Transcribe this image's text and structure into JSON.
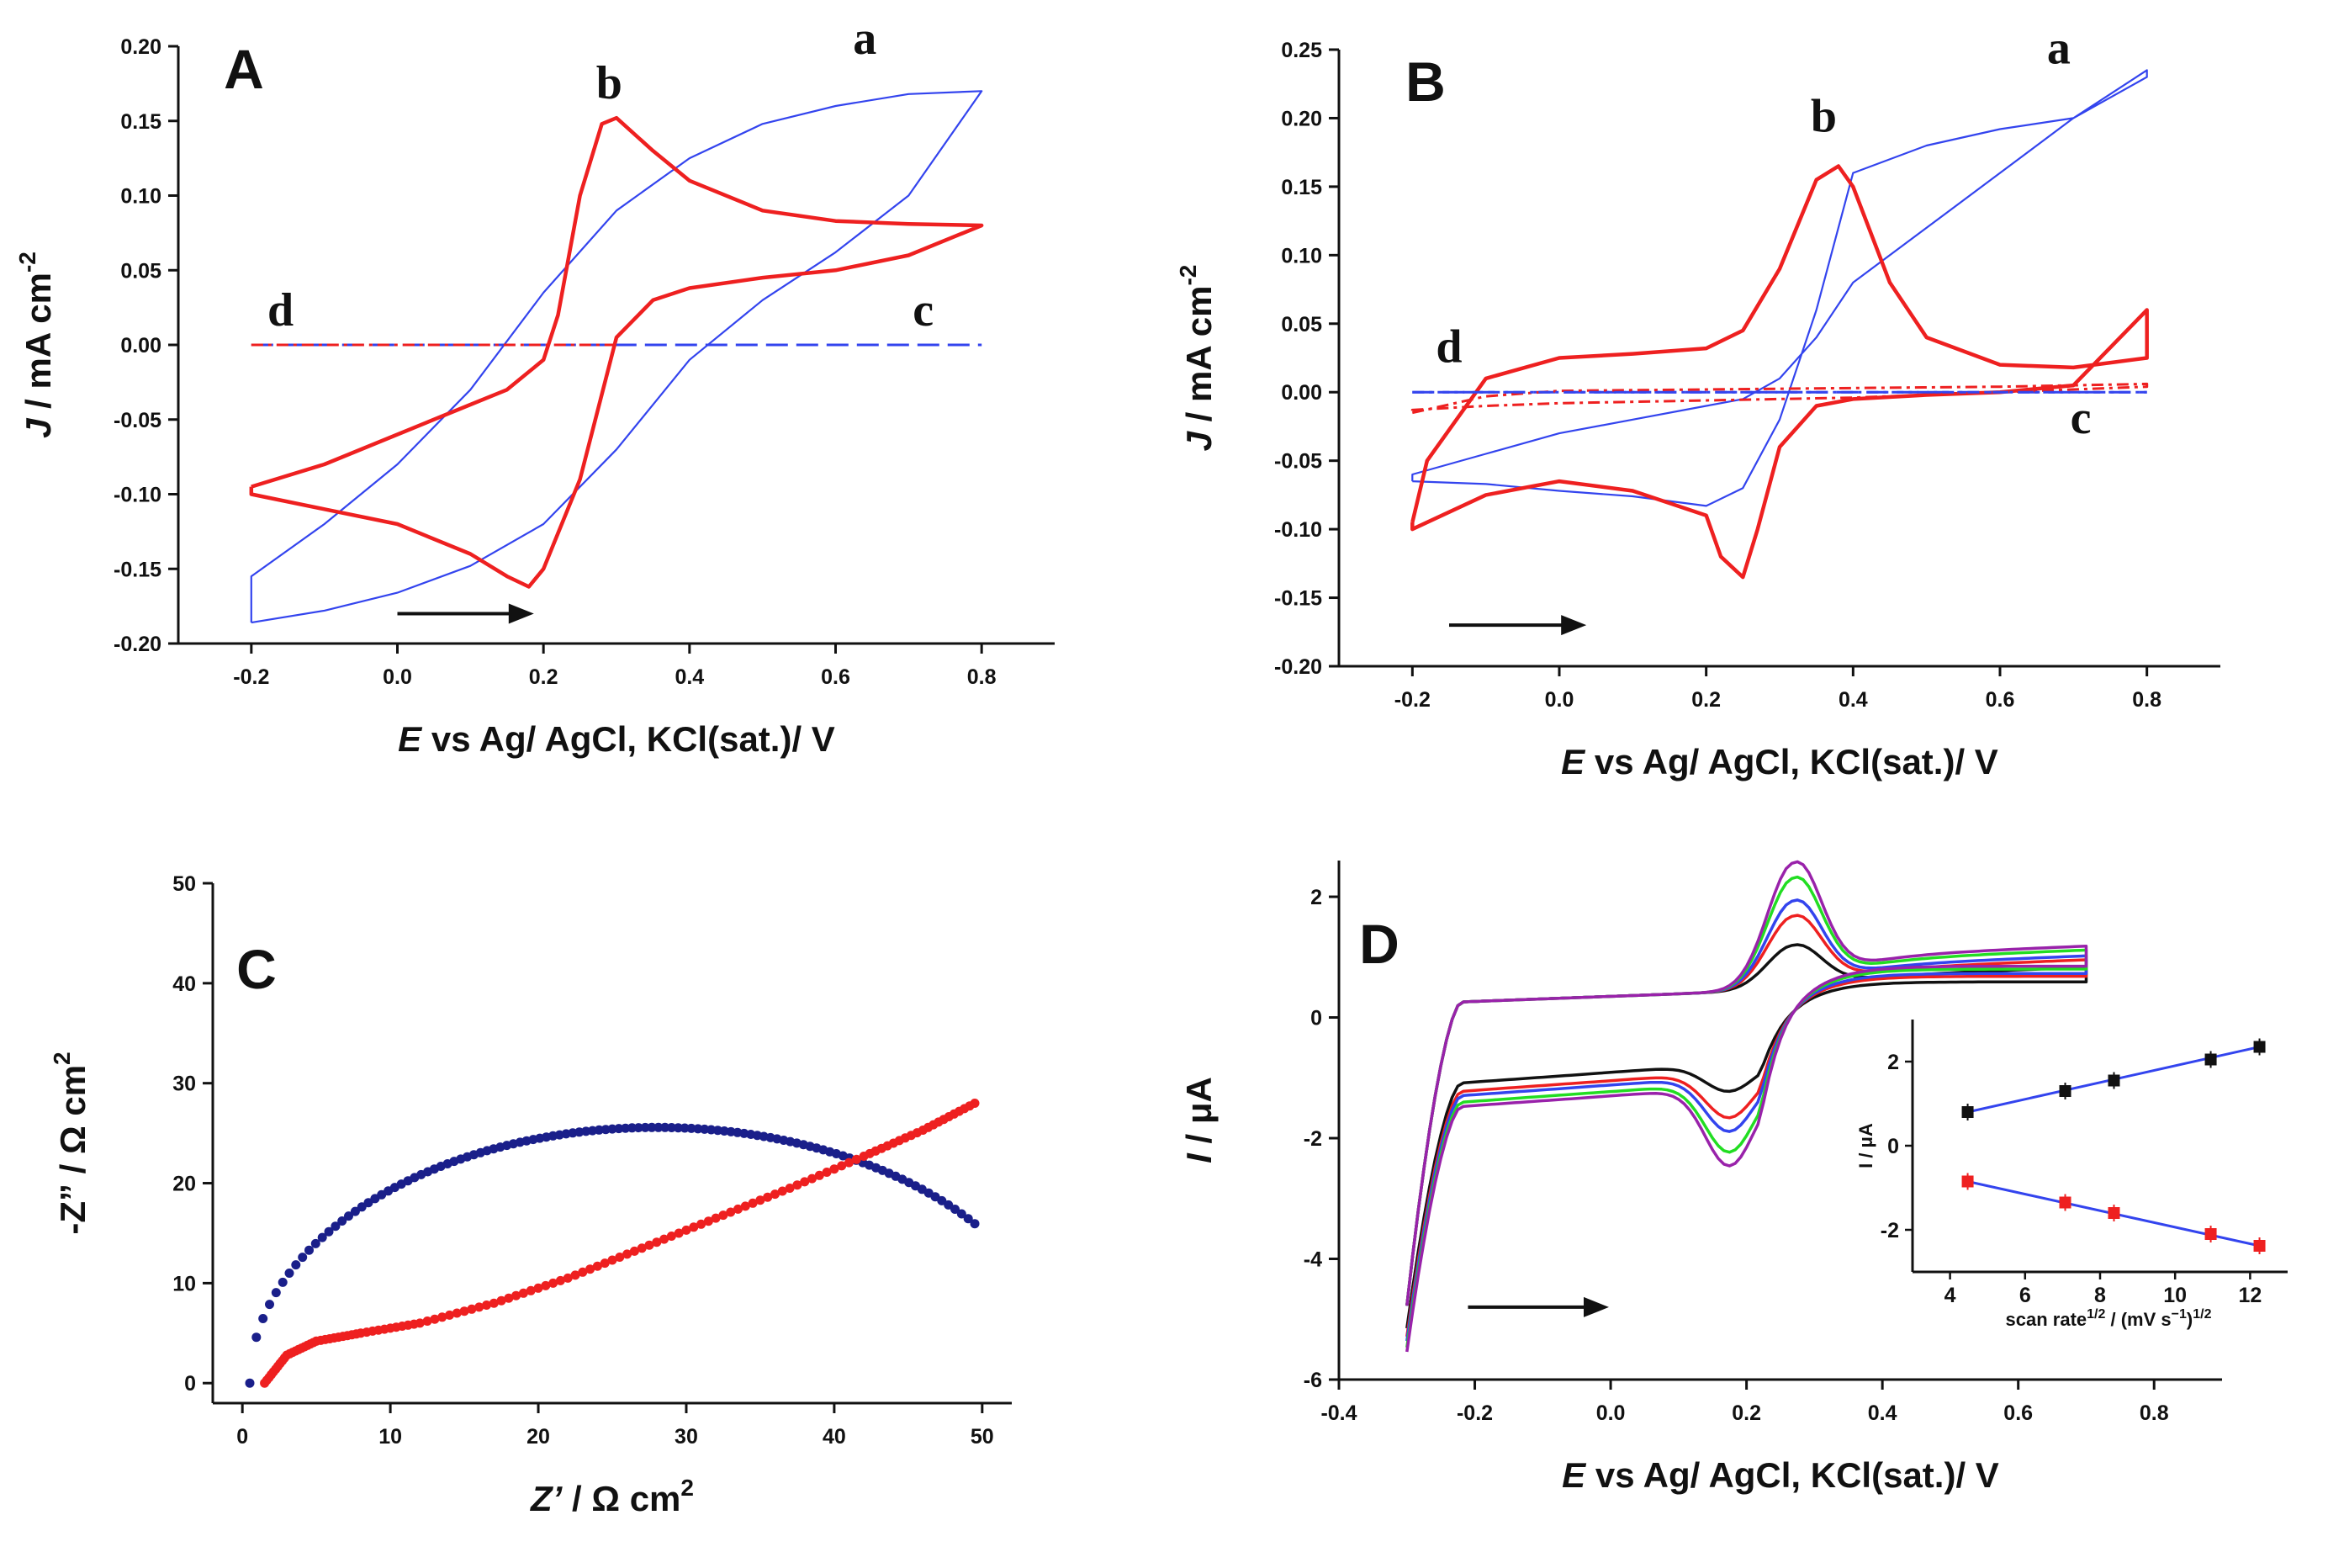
{
  "colors": {
    "red": "#ee2020",
    "blue": "#3344ee",
    "navy": "#1a1f8a",
    "green": "#22dd22",
    "purple": "#9922aa",
    "black": "#111111",
    "axis": "#111111"
  },
  "chart_data": [
    {
      "id": "A",
      "type": "line",
      "panel_label": "A",
      "xlabel_italic": "E",
      "xlabel_rest": " vs Ag/ AgCl, KCl(sat.)/ V",
      "ylabel_italic": "J",
      "ylabel_rest": " / mA cm",
      "ylabel_sup": "-2",
      "xlim": [
        -0.3,
        0.9
      ],
      "ylim": [
        -0.2,
        0.2
      ],
      "xticks": [
        -0.2,
        0.0,
        0.2,
        0.4,
        0.6,
        0.8
      ],
      "xtick_labels": [
        "-0.2",
        "0.0",
        "0.2",
        "0.4",
        "0.6",
        "0.8"
      ],
      "yticks": [
        -0.2,
        -0.15,
        -0.1,
        -0.05,
        0.0,
        0.05,
        0.1,
        0.15,
        0.2
      ],
      "ytick_labels": [
        "-0.20",
        "-0.15",
        "-0.10",
        "-0.05",
        "0.00",
        "0.05",
        "0.10",
        "0.15",
        "0.20"
      ],
      "curve_labels": [
        {
          "text": "a",
          "x": 0.64,
          "y": 0.195
        },
        {
          "text": "b",
          "x": 0.29,
          "y": 0.165
        },
        {
          "text": "c",
          "x": 0.72,
          "y": 0.013
        },
        {
          "text": "d",
          "x": -0.16,
          "y": 0.013
        }
      ],
      "arrow": {
        "x1": 0.0,
        "x2": 0.18,
        "y": -0.18
      },
      "series": [
        {
          "name": "a",
          "style": "thin-blue",
          "x": [
            -0.2,
            -0.1,
            0.0,
            0.1,
            0.2,
            0.3,
            0.4,
            0.5,
            0.6,
            0.7,
            0.8,
            0.8,
            0.7,
            0.6,
            0.5,
            0.4,
            0.3,
            0.2,
            0.1,
            0.0,
            -0.1,
            -0.2,
            -0.2
          ],
          "y": [
            -0.186,
            -0.178,
            -0.166,
            -0.148,
            -0.12,
            -0.07,
            -0.01,
            0.03,
            0.062,
            0.1,
            0.17,
            0.17,
            0.168,
            0.16,
            0.148,
            0.125,
            0.09,
            0.035,
            -0.03,
            -0.08,
            -0.12,
            -0.155,
            -0.186
          ]
        },
        {
          "name": "b",
          "style": "thick-red",
          "x": [
            -0.2,
            -0.1,
            0.0,
            0.1,
            0.15,
            0.2,
            0.22,
            0.25,
            0.28,
            0.3,
            0.35,
            0.4,
            0.5,
            0.6,
            0.7,
            0.8,
            0.8,
            0.7,
            0.6,
            0.5,
            0.4,
            0.35,
            0.3,
            0.25,
            0.2,
            0.18,
            0.15,
            0.1,
            0.0,
            -0.1,
            -0.2,
            -0.2
          ],
          "y": [
            -0.095,
            -0.08,
            -0.06,
            -0.04,
            -0.03,
            -0.01,
            0.02,
            0.1,
            0.148,
            0.152,
            0.13,
            0.11,
            0.09,
            0.083,
            0.081,
            0.08,
            0.08,
            0.06,
            0.05,
            0.045,
            0.038,
            0.03,
            0.005,
            -0.09,
            -0.15,
            -0.162,
            -0.155,
            -0.14,
            -0.12,
            -0.11,
            -0.1,
            -0.095
          ]
        },
        {
          "name": "c",
          "style": "dash-blue",
          "x": [
            -0.2,
            0.8
          ],
          "y": [
            0.0,
            0.0
          ]
        },
        {
          "name": "d",
          "style": "dashdot-red",
          "x": [
            -0.2,
            0.3
          ],
          "y": [
            0.0,
            0.0
          ]
        }
      ]
    },
    {
      "id": "B",
      "type": "line",
      "panel_label": "B",
      "xlabel_italic": "E",
      "xlabel_rest": " vs Ag/ AgCl, KCl(sat.)/ V",
      "ylabel_italic": "J",
      "ylabel_rest": " / mA cm",
      "ylabel_sup": "-2",
      "xlim": [
        -0.3,
        0.9
      ],
      "ylim": [
        -0.2,
        0.25
      ],
      "xticks": [
        -0.2,
        0.0,
        0.2,
        0.4,
        0.6,
        0.8
      ],
      "xtick_labels": [
        "-0.2",
        "0.0",
        "0.2",
        "0.4",
        "0.6",
        "0.8"
      ],
      "yticks": [
        -0.2,
        -0.15,
        -0.1,
        -0.05,
        0.0,
        0.05,
        0.1,
        0.15,
        0.2,
        0.25
      ],
      "ytick_labels": [
        "-0.20",
        "-0.15",
        "-0.10",
        "-0.05",
        "0.00",
        "0.05",
        "0.10",
        "0.15",
        "0.20",
        "0.25"
      ],
      "curve_labels": [
        {
          "text": "a",
          "x": 0.68,
          "y": 0.24
        },
        {
          "text": "b",
          "x": 0.36,
          "y": 0.19
        },
        {
          "text": "c",
          "x": 0.71,
          "y": -0.03
        },
        {
          "text": "d",
          "x": -0.15,
          "y": 0.022
        }
      ],
      "arrow": {
        "x1": -0.15,
        "x2": 0.03,
        "y": -0.17
      },
      "series": [
        {
          "name": "a",
          "style": "thin-blue",
          "x": [
            -0.2,
            -0.1,
            0.0,
            0.1,
            0.2,
            0.25,
            0.3,
            0.35,
            0.4,
            0.5,
            0.6,
            0.7,
            0.8,
            0.8,
            0.7,
            0.6,
            0.5,
            0.4,
            0.35,
            0.3,
            0.25,
            0.2,
            0.1,
            0.0,
            -0.1,
            -0.2,
            -0.2
          ],
          "y": [
            -0.065,
            -0.067,
            -0.072,
            -0.076,
            -0.083,
            -0.07,
            -0.02,
            0.06,
            0.16,
            0.18,
            0.192,
            0.2,
            0.23,
            0.235,
            0.2,
            0.16,
            0.12,
            0.08,
            0.04,
            0.01,
            -0.005,
            -0.01,
            -0.02,
            -0.03,
            -0.045,
            -0.06,
            -0.065
          ]
        },
        {
          "name": "b",
          "style": "thick-red",
          "x": [
            -0.2,
            -0.18,
            -0.1,
            0.0,
            0.1,
            0.2,
            0.25,
            0.3,
            0.35,
            0.38,
            0.4,
            0.45,
            0.5,
            0.6,
            0.7,
            0.8,
            0.8,
            0.7,
            0.6,
            0.5,
            0.4,
            0.35,
            0.3,
            0.27,
            0.25,
            0.22,
            0.2,
            0.1,
            0.0,
            -0.1,
            -0.2,
            -0.2
          ],
          "y": [
            -0.095,
            -0.05,
            0.01,
            0.025,
            0.028,
            0.032,
            0.045,
            0.09,
            0.155,
            0.165,
            0.15,
            0.08,
            0.04,
            0.02,
            0.018,
            0.025,
            0.06,
            0.005,
            0.0,
            -0.002,
            -0.005,
            -0.01,
            -0.04,
            -0.1,
            -0.135,
            -0.12,
            -0.09,
            -0.072,
            -0.065,
            -0.075,
            -0.1,
            -0.095
          ]
        },
        {
          "name": "c",
          "style": "dash-blue",
          "x": [
            -0.2,
            0.8
          ],
          "y": [
            0.0,
            0.0
          ]
        },
        {
          "name": "c2",
          "style": "dashdot-red",
          "x": [
            -0.2,
            -0.1,
            0.0,
            0.2,
            0.4,
            0.6,
            0.8,
            0.8,
            0.6,
            0.4,
            0.2,
            0.0,
            -0.1,
            -0.2,
            -0.2
          ],
          "y": [
            -0.015,
            -0.003,
            0.001,
            0.002,
            0.003,
            0.004,
            0.006,
            0.004,
            0.0,
            -0.004,
            -0.006,
            -0.008,
            -0.01,
            -0.013,
            -0.015
          ]
        },
        {
          "name": "d",
          "style": "dashdot-blue",
          "x": [
            -0.2,
            0.8
          ],
          "y": [
            0.0,
            0.0
          ]
        }
      ]
    },
    {
      "id": "C",
      "type": "scatter",
      "panel_label": "C",
      "xlabel_italic": "Z’",
      "xlabel_rest": " / Ω cm",
      "xlabel_sup": "2",
      "ylabel_italic": "",
      "ylabel_rest": "-Z” / Ω cm",
      "ylabel_sup": "2",
      "xlim": [
        -2,
        52
      ],
      "ylim": [
        -2,
        50
      ],
      "xticks": [
        0,
        10,
        20,
        30,
        40,
        50
      ],
      "xtick_labels": [
        "0",
        "10",
        "20",
        "30",
        "40",
        "50"
      ],
      "yticks": [
        0,
        10,
        20,
        30,
        40,
        50
      ],
      "ytick_labels": [
        "0",
        "10",
        "20",
        "30",
        "40",
        "50"
      ],
      "series": [
        {
          "name": "blue-arc",
          "style": "dots-navy",
          "kind": "arc",
          "x_start": 0.5,
          "x_end": 49.5,
          "center": 28,
          "radius": 27.5,
          "yscale": 0.93
        },
        {
          "name": "red-curve",
          "style": "dots-red",
          "kind": "polyline",
          "x": [
            1.5,
            3,
            5,
            8,
            12,
            17,
            22,
            27,
            32,
            37,
            42,
            46,
            49.5
          ],
          "y": [
            0,
            2.8,
            4.2,
            5.0,
            6.0,
            8.0,
            10.5,
            13.5,
            16.5,
            19.5,
            22.7,
            25.3,
            28.0
          ]
        }
      ]
    },
    {
      "id": "D",
      "type": "line",
      "panel_label": "D",
      "xlabel_italic": "E",
      "xlabel_rest": " vs Ag/ AgCl, KCl(sat.)/ V",
      "ylabel_italic": "I",
      "ylabel_rest": " / μA",
      "xlim": [
        -0.4,
        0.9
      ],
      "ylim": [
        -6,
        2.6
      ],
      "xticks": [
        -0.4,
        -0.2,
        0.0,
        0.2,
        0.4,
        0.6,
        0.8
      ],
      "xtick_labels": [
        "-0.4",
        "-0.2",
        "0.0",
        "0.2",
        "0.4",
        "0.6",
        "0.8"
      ],
      "yticks": [
        -6,
        -4,
        -2,
        0,
        2
      ],
      "ytick_labels": [
        "-6",
        "-4",
        "-2",
        "0",
        "2"
      ],
      "arrow": {
        "x1": -0.21,
        "x2": -0.01,
        "y": -4.8
      },
      "cv_series": [
        {
          "name": "scan-1",
          "color": "black",
          "k": 0.35
        },
        {
          "name": "scan-2",
          "color": "red",
          "k": 0.58
        },
        {
          "name": "scan-3",
          "color": "blue",
          "k": 0.7
        },
        {
          "name": "scan-4",
          "color": "green",
          "k": 0.88
        },
        {
          "name": "scan-5",
          "color": "purple",
          "k": 1.0
        }
      ],
      "inset": {
        "xlabel": "scan rate",
        "xlabel_sup1": "1/2",
        "xlabel_mid": " / (mV s",
        "xlabel_sup2": "−1",
        "xlabel_end": ")",
        "xlabel_sup3": "1/2",
        "ylabel": "I / μA",
        "xlim": [
          3,
          13
        ],
        "ylim": [
          -3,
          3
        ],
        "xticks": [
          4,
          6,
          8,
          10,
          12
        ],
        "xtick_labels": [
          "4",
          "6",
          "8",
          "10",
          "12"
        ],
        "yticks": [
          -2,
          0,
          2
        ],
        "ytick_labels": [
          "-2",
          "0",
          "2"
        ],
        "x": [
          4.47,
          7.07,
          8.37,
          10.95,
          12.25
        ],
        "anodic": [
          0.8,
          1.3,
          1.55,
          2.05,
          2.35
        ],
        "cathodic": [
          -0.85,
          -1.35,
          -1.6,
          -2.1,
          -2.38
        ]
      }
    }
  ]
}
